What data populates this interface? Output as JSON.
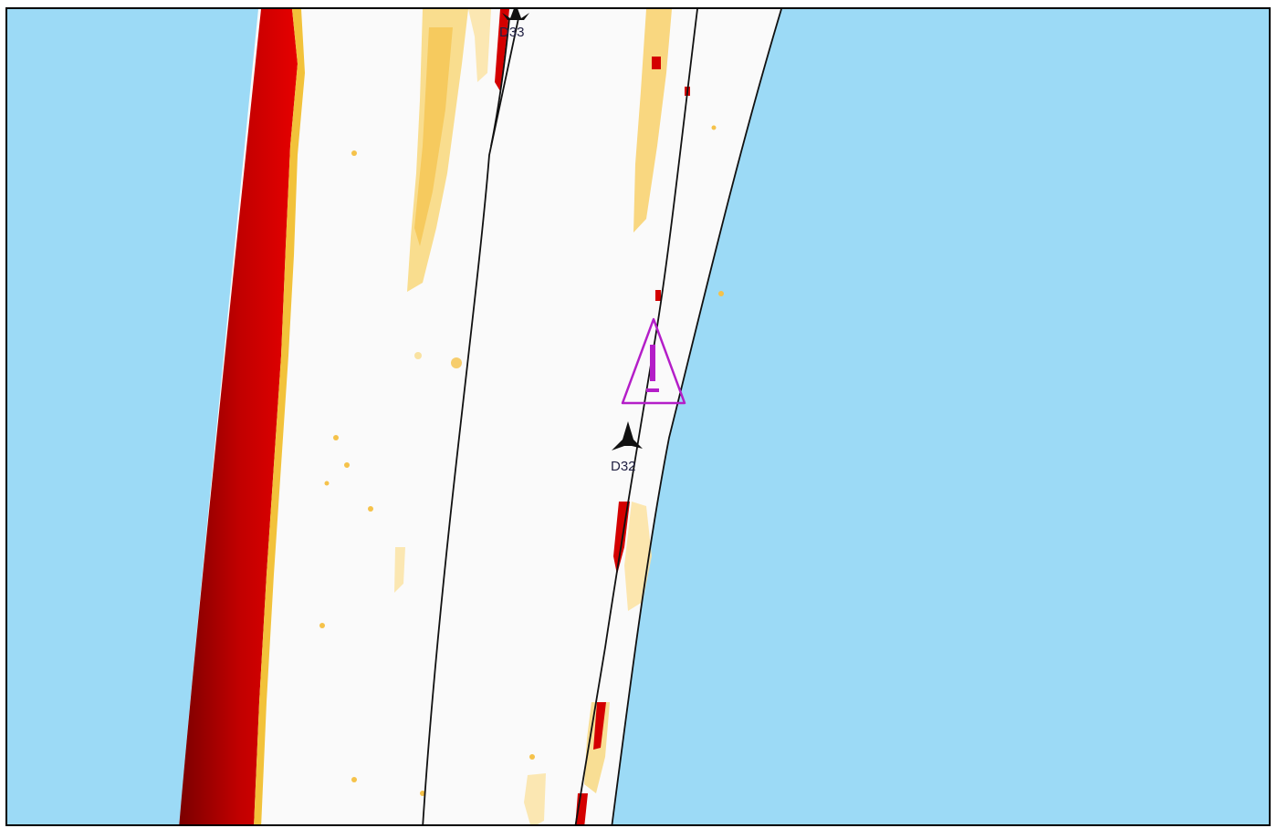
{
  "map": {
    "colors": {
      "water": "#9cdaf6",
      "land": "#fafafa",
      "high_intensity": "#d40000",
      "medium_intensity": "#f7c84a",
      "low_intensity": "#fbe6a6",
      "boundary_line": "#111111",
      "hazard_symbol": "#b41ec8",
      "marker": "#111111"
    },
    "markers": [
      {
        "id": "d33",
        "label": "D33",
        "icon": "aircraft-icon"
      },
      {
        "id": "d32",
        "label": "D32",
        "icon": "aircraft-icon"
      }
    ],
    "hazard": {
      "icon": "warning-triangle-icon",
      "symbol": "!"
    }
  }
}
